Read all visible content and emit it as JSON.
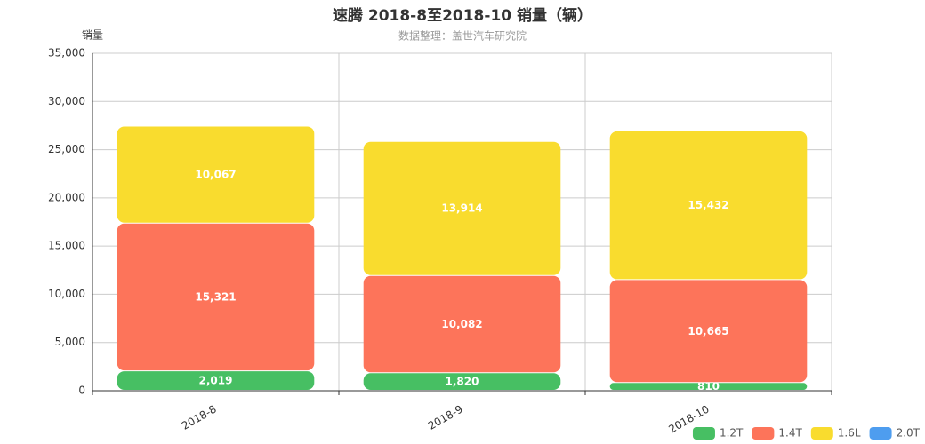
{
  "chart_data": {
    "type": "stacked_bar",
    "title": "速腾 2018-8至2018-10 销量（辆）",
    "subtitle": "数据整理：盖世汽车研究院",
    "y_label": "销量",
    "categories": [
      "2018-8",
      "2018-9",
      "2018-10"
    ],
    "series": [
      {
        "name": "1.2T",
        "color": "#47bf63",
        "values": [
          2019,
          1820,
          810
        ],
        "value_labels": [
          "2,019",
          "1,820",
          "810"
        ]
      },
      {
        "name": "1.4T",
        "color": "#fd745a",
        "values": [
          15321,
          10082,
          10665
        ],
        "value_labels": [
          "15,321",
          "10,082",
          "10,665"
        ]
      },
      {
        "name": "1.6L",
        "color": "#f9dc2e",
        "values": [
          10067,
          13914,
          15432
        ],
        "value_labels": [
          "10,067",
          "13,914",
          "15,432"
        ]
      },
      {
        "name": "2.0T",
        "color": "#4e9def",
        "values": [
          0,
          0,
          0
        ]
      }
    ],
    "ylim": [
      0,
      35000
    ],
    "yticks": [
      0,
      {
        "value": 5000,
        "label": "5,000"
      },
      {
        "value": 10000,
        "label": "10,000"
      },
      {
        "value": 15000,
        "label": "15,000"
      },
      {
        "value": 20000,
        "label": "20,000"
      },
      {
        "value": 25000,
        "label": "25,000"
      },
      {
        "value": 30000,
        "label": "30,000"
      },
      {
        "value": 35000,
        "label": "35,000"
      }
    ],
    "grid": true
  }
}
